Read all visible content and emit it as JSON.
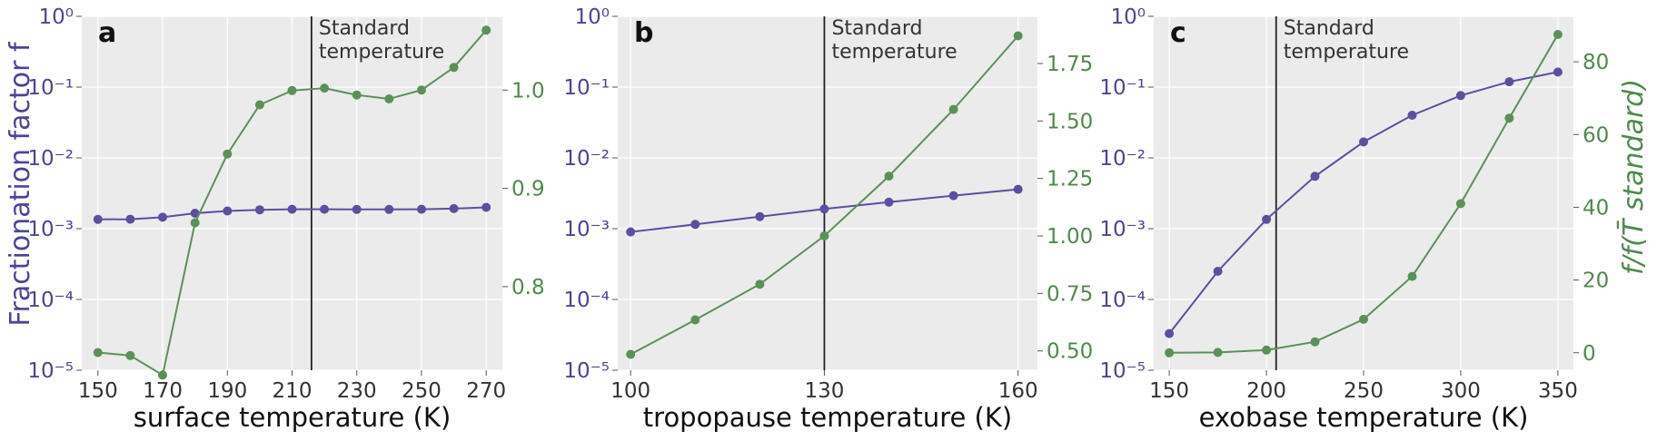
{
  "colors": {
    "purple": "#5a4fa0",
    "green": "#5a9158",
    "panel_bg": "#ebebeb",
    "grid": "#ffffff",
    "vline": "#222222"
  },
  "chart_data": [
    {
      "type": "line",
      "panel": "a",
      "xlabel": "surface temperature (K)",
      "ylabel_left": "Fractionation factor f",
      "ylabel_right": "",
      "x_ticks": [
        150,
        170,
        190,
        210,
        230,
        250,
        270
      ],
      "xlim": [
        145,
        275
      ],
      "left_scale": "log",
      "left_ylim": [
        1e-05,
        1
      ],
      "left_ticks": [
        "10⁻⁵",
        "10⁻⁴",
        "10⁻³",
        "10⁻²",
        "10⁻¹",
        "10⁰"
      ],
      "right_ylim": [
        0.715,
        1.075
      ],
      "right_ticks": [
        0.8,
        0.9,
        1.0
      ],
      "right_tick_labels": [
        "0.8",
        "0.9",
        "1.0"
      ],
      "vline": {
        "x": 216,
        "label_line1": "Standard",
        "label_line2": "temperature"
      },
      "series": [
        {
          "axis": "left",
          "color": "purple",
          "x": [
            150,
            160,
            170,
            180,
            190,
            200,
            210,
            220,
            230,
            240,
            250,
            260,
            270
          ],
          "y": [
            0.00135,
            0.00136,
            0.00145,
            0.00165,
            0.00178,
            0.00185,
            0.00188,
            0.00188,
            0.00187,
            0.00187,
            0.00188,
            0.00192,
            0.002
          ]
        },
        {
          "axis": "right",
          "color": "green",
          "x": [
            150,
            160,
            170,
            180,
            190,
            200,
            210,
            220,
            230,
            240,
            250,
            260,
            270
          ],
          "y": [
            0.733,
            0.73,
            0.71,
            0.865,
            0.935,
            0.985,
            0.9995,
            1.002,
            0.995,
            0.991,
            1.0,
            1.023,
            1.061
          ]
        }
      ]
    },
    {
      "type": "line",
      "panel": "b",
      "xlabel": "tropopause temperature (K)",
      "x_ticks": [
        100,
        130,
        160
      ],
      "xlim": [
        98,
        163
      ],
      "left_scale": "log",
      "left_ylim": [
        1e-05,
        1
      ],
      "left_ticks": [
        "10⁻⁵",
        "10⁻⁴",
        "10⁻³",
        "10⁻²",
        "10⁻¹",
        "10⁰"
      ],
      "right_ylim": [
        0.416,
        1.955
      ],
      "right_ticks": [
        0.5,
        0.75,
        1.0,
        1.25,
        1.5,
        1.75
      ],
      "right_tick_labels": [
        "0.50",
        "0.75",
        "1.00",
        "1.25",
        "1.50",
        "1.75"
      ],
      "vline": {
        "x": 130,
        "label_line1": "Standard",
        "label_line2": "temperature"
      },
      "series": [
        {
          "axis": "left",
          "color": "purple",
          "x": [
            100,
            110,
            120,
            130,
            140,
            150,
            160
          ],
          "y": [
            0.0009,
            0.00115,
            0.00148,
            0.0019,
            0.00237,
            0.00293,
            0.0036
          ]
        },
        {
          "axis": "right",
          "color": "green",
          "x": [
            100,
            110,
            120,
            130,
            140,
            150,
            160
          ],
          "y": [
            0.485,
            0.635,
            0.79,
            1.0,
            1.26,
            1.55,
            1.87
          ]
        }
      ]
    },
    {
      "type": "line",
      "panel": "c",
      "xlabel": "exobase temperature (K)",
      "ylabel_right": "f/f(T̄ standard)",
      "x_ticks": [
        150,
        200,
        250,
        300,
        350
      ],
      "xlim": [
        142,
        358
      ],
      "left_scale": "log",
      "left_ylim": [
        1e-05,
        1
      ],
      "left_ticks": [
        "10⁻⁵",
        "10⁻⁴",
        "10⁻³",
        "10⁻²",
        "10⁻¹",
        "10⁰"
      ],
      "right_ylim": [
        -4.8,
        92.5
      ],
      "right_ticks": [
        0,
        20,
        40,
        60,
        80
      ],
      "right_tick_labels": [
        "0",
        "20",
        "40",
        "60",
        "80"
      ],
      "vline": {
        "x": 205,
        "label_line1": "Standard",
        "label_line2": "temperature"
      },
      "series": [
        {
          "axis": "left",
          "color": "purple",
          "x": [
            150,
            175,
            200,
            225,
            250,
            275,
            300,
            325,
            350
          ],
          "y": [
            3.3e-05,
            0.00025,
            0.00135,
            0.0055,
            0.0168,
            0.0401,
            0.076,
            0.119,
            0.163
          ]
        },
        {
          "axis": "right",
          "color": "green",
          "x": [
            150,
            175,
            200,
            225,
            250,
            275,
            300,
            325,
            350
          ],
          "y": [
            0.0,
            0.1,
            0.75,
            3.0,
            9.2,
            21.0,
            41.0,
            64.5,
            87.5
          ]
        }
      ]
    }
  ]
}
